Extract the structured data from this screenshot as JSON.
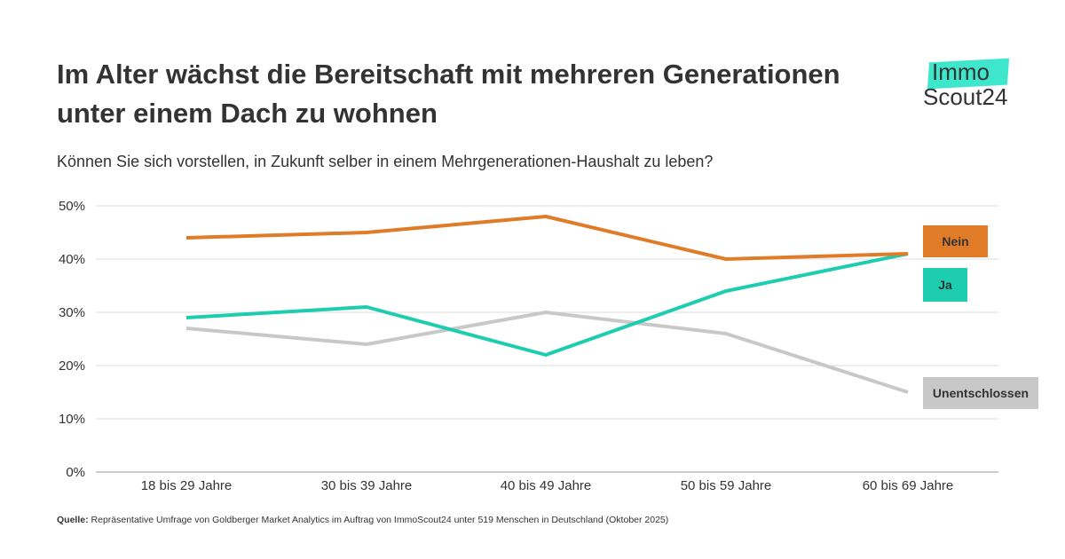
{
  "title": "Im Alter wächst die Bereitschaft mit mehreren Generationen unter einem Dach zu wohnen",
  "logo": {
    "line1": "Immo",
    "line2": "Scout24"
  },
  "chart_data": {
    "type": "line",
    "title": "Im Alter wächst die Bereitschaft mit mehreren Generationen unter einem Dach zu wohnen",
    "subtitle": "Können Sie sich vorstellen, in Zukunft selber in einem Mehrgenerationen-Haushalt zu leben?",
    "categories": [
      "18 bis 29 Jahre",
      "30 bis 39 Jahre",
      "40 bis 49 Jahre",
      "50 bis 59 Jahre",
      "60 bis 69 Jahre"
    ],
    "ylim": [
      0,
      50
    ],
    "yticks": [
      "0%",
      "10%",
      "20%",
      "30%",
      "40%",
      "50%"
    ],
    "grid": true,
    "legend": "right, end-of-line labels",
    "series": [
      {
        "name": "Nein",
        "values": [
          44,
          45,
          48,
          40,
          41
        ],
        "color": "#e07b28"
      },
      {
        "name": "Ja",
        "values": [
          29,
          31,
          22,
          34,
          41
        ],
        "color": "#1ecdb0"
      },
      {
        "name": "Unentschlossen",
        "values": [
          27,
          24,
          30,
          26,
          15
        ],
        "color": "#c8c8c8"
      }
    ]
  },
  "source": {
    "label": "Quelle:",
    "text": "Repräsentative Umfrage von Goldberger Market Analytics im Auftrag von ImmoScout24 unter 519 Menschen in Deutschland (Oktober 2025)"
  }
}
